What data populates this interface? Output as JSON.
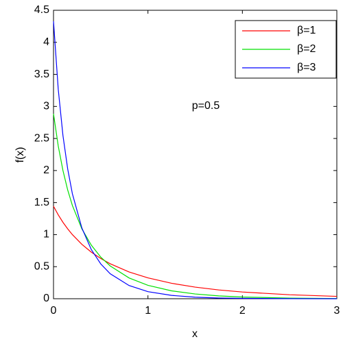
{
  "chart_data": {
    "type": "line",
    "xlabel": "x",
    "ylabel": "f(x)",
    "annotation": "p=0.5",
    "x": [
      0,
      0.05,
      0.1,
      0.15,
      0.2,
      0.3,
      0.4,
      0.5,
      0.6,
      0.8,
      1,
      1.25,
      1.5,
      1.75,
      2,
      2.5,
      3
    ],
    "series": [
      {
        "name": "β=1",
        "color": "#ff0000",
        "values": [
          1.443,
          1.309,
          1.192,
          1.09,
          1.0,
          0.849,
          0.727,
          0.628,
          0.546,
          0.418,
          0.325,
          0.241,
          0.181,
          0.137,
          0.105,
          0.062,
          0.037
        ]
      },
      {
        "name": "β=2",
        "color": "#00e000",
        "values": [
          2.885,
          2.384,
          2.0,
          1.697,
          1.454,
          1.091,
          0.836,
          0.65,
          0.512,
          0.324,
          0.209,
          0.123,
          0.074,
          0.044,
          0.027,
          0.0098,
          0.0036
        ]
      },
      {
        "name": "β=3",
        "color": "#0000ff",
        "values": [
          4.328,
          3.27,
          2.546,
          2.026,
          1.637,
          1.105,
          0.767,
          0.544,
          0.39,
          0.206,
          0.11,
          0.052,
          0.024,
          0.011,
          0.0054,
          0.0012,
          0.0003
        ]
      }
    ],
    "xlim": [
      0,
      3
    ],
    "xticks": [
      0,
      1,
      2,
      3
    ],
    "ylim": [
      0,
      4.5
    ],
    "yticks": [
      0,
      0.5,
      1,
      1.5,
      2,
      2.5,
      3,
      3.5,
      4,
      4.5
    ],
    "legend": "top-right"
  }
}
